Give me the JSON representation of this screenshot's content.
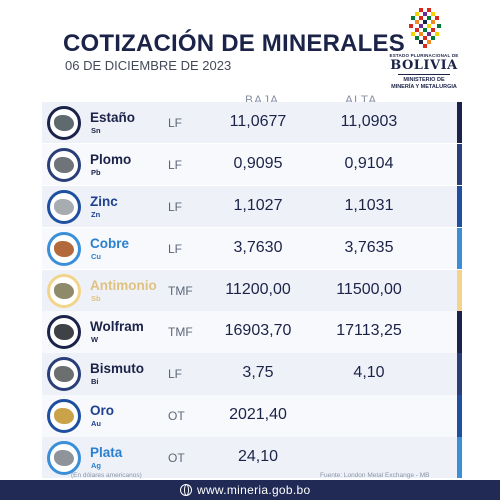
{
  "header": {
    "title": "COTIZACIÓN DE MINERALES",
    "date": "06 DE DICIEMBRE DE 2023"
  },
  "logo": {
    "top_text": "ESTADO PLURINACIONAL DE",
    "main_text": "BOLIVIA",
    "sub_line1": "MINISTERIO DE",
    "sub_line2": "MINERÍA Y METALURGIA"
  },
  "table": {
    "col_low": "BAJA",
    "col_high": "ALTA",
    "rows": [
      {
        "name": "Estaño",
        "symbol": "Sn",
        "unit": "LF",
        "low": "11,0677",
        "high": "11,0903",
        "name_color": "#1c2348",
        "stripe_color": "#1c2348",
        "rock_color": "#5f6a6e"
      },
      {
        "name": "Plomo",
        "symbol": "Pb",
        "unit": "LF",
        "low": "0,9095",
        "high": "0,9104",
        "name_color": "#1c2348",
        "stripe_color": "#2a3f78",
        "rock_color": "#6e7479"
      },
      {
        "name": "Zinc",
        "symbol": "Zn",
        "unit": "LF",
        "low": "1,1027",
        "high": "1,1031",
        "name_color": "#1f3f8f",
        "stripe_color": "#1e4fa0",
        "rock_color": "#a7acb0"
      },
      {
        "name": "Cobre",
        "symbol": "Cu",
        "unit": "LF",
        "low": "3,7630",
        "high": "3,7635",
        "name_color": "#2a7fd0",
        "stripe_color": "#3a8fd8",
        "rock_color": "#b26a3c"
      },
      {
        "name": "Antimonio",
        "symbol": "Sb",
        "unit": "TMF",
        "low": "11200,00",
        "high": "11500,00",
        "name_color": "#e0c180",
        "stripe_color": "#f2d58a",
        "rock_color": "#8f8a6a"
      },
      {
        "name": "Wolfram",
        "symbol": "W",
        "unit": "TMF",
        "low": "16903,70",
        "high": "17113,25",
        "name_color": "#1c2348",
        "stripe_color": "#1c2348",
        "rock_color": "#3e4246"
      },
      {
        "name": "Bismuto",
        "symbol": "Bi",
        "unit": "LF",
        "low": "3,75",
        "high": "4,10",
        "name_color": "#1c2348",
        "stripe_color": "#2a3f78",
        "rock_color": "#6b6f70"
      },
      {
        "name": "Oro",
        "symbol": "Au",
        "unit": "OT",
        "low": "2021,40",
        "high": "",
        "name_color": "#1f3f8f",
        "stripe_color": "#1e4fa0",
        "rock_color": "#c9a24a"
      },
      {
        "name": "Plata",
        "symbol": "Ag",
        "unit": "OT",
        "low": "24,10",
        "high": "",
        "name_color": "#2a7fd0",
        "stripe_color": "#3a8fd8",
        "rock_color": "#8f949a"
      }
    ]
  },
  "notes": {
    "left": "(En dólares americanos)",
    "right": "Fuente: London Metal Exchange - MB"
  },
  "footer": {
    "url": "www.mineria.gob.bo",
    "icon": "globe-icon",
    "background": "#202a55"
  }
}
